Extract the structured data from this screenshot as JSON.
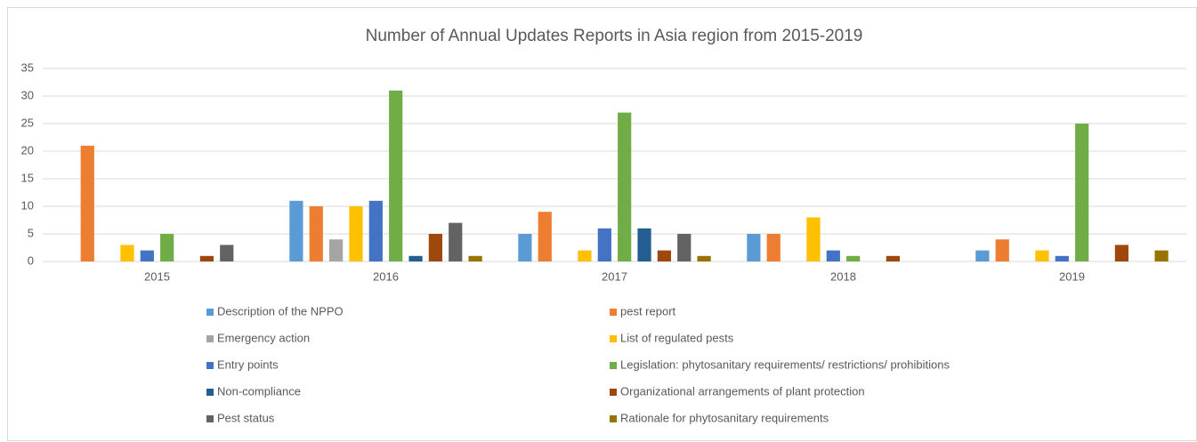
{
  "chart_data": {
    "type": "bar",
    "title": "Number of Annual Updates Reports in Asia region from 2015-2019",
    "categories": [
      "2015",
      "2016",
      "2017",
      "2018",
      "2019"
    ],
    "series": [
      {
        "name": "Description of the NPPO",
        "color": "#5b9bd5",
        "values": [
          0,
          11,
          5,
          5,
          2
        ]
      },
      {
        "name": "pest report",
        "color": "#ed7d31",
        "values": [
          21,
          10,
          9,
          5,
          4
        ]
      },
      {
        "name": "Emergency action",
        "color": "#a5a5a5",
        "values": [
          0,
          4,
          0,
          0,
          0
        ]
      },
      {
        "name": "List of regulated pests",
        "color": "#ffc000",
        "values": [
          3,
          10,
          2,
          8,
          2
        ]
      },
      {
        "name": "Entry points",
        "color": "#4472c4",
        "values": [
          2,
          11,
          6,
          2,
          1
        ]
      },
      {
        "name": "Legislation: phytosanitary requirements/ restrictions/ prohibitions",
        "color": "#70ad47",
        "values": [
          5,
          31,
          27,
          1,
          25
        ]
      },
      {
        "name": "Non-compliance",
        "color": "#255e91",
        "values": [
          0,
          1,
          6,
          0,
          0
        ]
      },
      {
        "name": "Organizational arrangements of plant protection",
        "color": "#9e480e",
        "values": [
          1,
          5,
          2,
          1,
          3
        ]
      },
      {
        "name": "Pest status",
        "color": "#636363",
        "values": [
          3,
          7,
          5,
          0,
          0
        ]
      },
      {
        "name": "Rationale for phytosanitary requirements",
        "color": "#997300",
        "values": [
          0,
          1,
          1,
          0,
          2
        ]
      }
    ],
    "ylim": [
      0,
      35
    ],
    "yticks": [
      0,
      5,
      10,
      15,
      20,
      25,
      30,
      35
    ],
    "grid": true,
    "legend": "bottom"
  }
}
